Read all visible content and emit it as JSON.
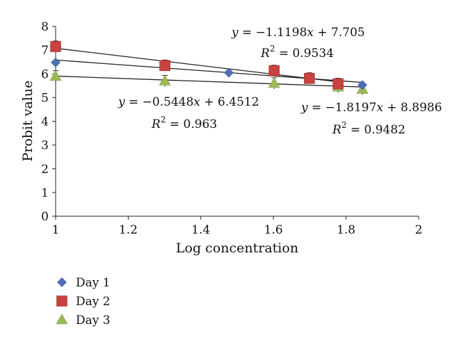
{
  "chart_data": {
    "type": "scatter",
    "xlabel": "Log concentration",
    "ylabel": "Probit value",
    "xlim": [
      1,
      2
    ],
    "ylim": [
      0,
      8
    ],
    "x_ticks": [
      "1",
      "1.2",
      "1.4",
      "1.6",
      "1.8",
      "2"
    ],
    "y_ticks": [
      "0",
      "1",
      "2",
      "3",
      "4",
      "5",
      "6",
      "7",
      "8"
    ],
    "grid": false,
    "legend_position": "bottom-left",
    "series": [
      {
        "name": "Day 1",
        "marker": "diamond",
        "color": "#4F6EB5",
        "x": [
          1.0,
          1.477,
          1.845
        ],
        "y": [
          6.48,
          6.05,
          5.53
        ],
        "fit": {
          "slope": -1.1198,
          "intercept": 7.705
        }
      },
      {
        "name": "Day 2",
        "marker": "square",
        "color": "#C8423F",
        "x": [
          1.0,
          1.301,
          1.602,
          1.699,
          1.778
        ],
        "y": [
          7.15,
          6.35,
          6.13,
          5.81,
          5.58
        ],
        "fit": {
          "slope": -1.8197,
          "intercept": 8.8986
        }
      },
      {
        "name": "Day 3",
        "marker": "triangle",
        "color": "#9BBB59",
        "x": [
          1.0,
          1.301,
          1.602,
          1.778,
          1.845
        ],
        "y": [
          5.9,
          5.7,
          5.6,
          5.45,
          5.35
        ],
        "fit": {
          "slope": -0.5448,
          "intercept": 6.4512
        }
      }
    ],
    "annotations": [
      {
        "eq_y": "y",
        "eq": " = −1.1198",
        "eq_x": "x",
        "eq_rest": " + 7.705",
        "r2_label": "R",
        "r2_sup": "2",
        "r2_value": " = 0.9534"
      },
      {
        "eq_y": "y",
        "eq": " = −0.5448",
        "eq_x": "x",
        "eq_rest": " + 6.4512",
        "r2_label": "R",
        "r2_sup": "2",
        "r2_value": " = 0.963"
      },
      {
        "eq_y": "y",
        "eq": " = −1.8197",
        "eq_x": "x",
        "eq_rest": " + 8.8986",
        "r2_label": "R",
        "r2_sup": "2",
        "r2_value": " = 0.9482"
      }
    ]
  }
}
